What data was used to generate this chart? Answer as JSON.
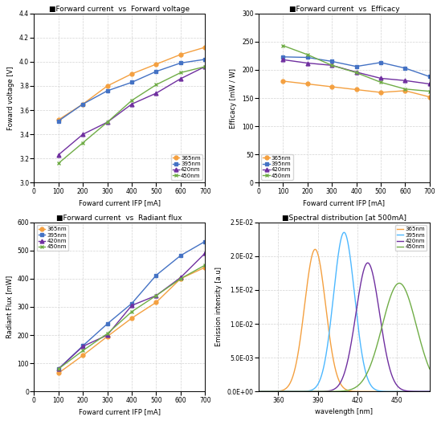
{
  "title1": "■Forward current  vs  Forward voltage",
  "title2": "■Forward current  vs  Efficacy",
  "title3": "■Forward current  vs  Radiant flux",
  "title4": "■Spectral distribution [at 500mA]",
  "xlabel_ifp": "Foward current IFP [mA]",
  "ylabel1": "Foward voltage [V]",
  "ylabel2": "Efficacy [mW / W]",
  "ylabel3": "Radiant Flux [mW]",
  "ylabel4": "Emission intensity [a.u]",
  "xlabel4": "wavelength [nm]",
  "ifp_x": [
    100,
    200,
    300,
    400,
    500,
    600,
    700
  ],
  "fv_365": [
    3.52,
    3.65,
    3.8,
    3.9,
    3.98,
    4.06,
    4.12
  ],
  "fv_395": [
    3.51,
    3.65,
    3.76,
    3.83,
    3.92,
    3.99,
    4.02
  ],
  "fv_420": [
    3.23,
    3.4,
    3.5,
    3.65,
    3.74,
    3.86,
    3.96
  ],
  "fv_450": [
    3.16,
    3.33,
    3.5,
    3.68,
    3.81,
    3.91,
    3.96
  ],
  "eff_365": [
    180,
    175,
    170,
    165,
    160,
    163,
    152
  ],
  "eff_395": [
    223,
    222,
    215,
    206,
    213,
    203,
    188
  ],
  "eff_420": [
    218,
    212,
    208,
    196,
    185,
    181,
    175
  ],
  "eff_450": [
    243,
    227,
    208,
    195,
    178,
    166,
    162
  ],
  "rf_365": [
    65,
    128,
    195,
    260,
    316,
    400,
    440
  ],
  "rf_395": [
    80,
    162,
    240,
    312,
    412,
    482,
    532
  ],
  "rf_420": [
    80,
    160,
    200,
    305,
    340,
    404,
    490
  ],
  "rf_450": [
    80,
    145,
    205,
    283,
    340,
    400,
    448
  ],
  "colors": {
    "365": "#f4a040",
    "395": "#4472c4",
    "420": "#7030a0",
    "450": "#70ad47"
  },
  "markers": {
    "365": "o",
    "395": "s",
    "420": "^",
    "450": "x"
  },
  "spectral_centers": {
    "365": 388,
    "395": 410,
    "420": 428,
    "450": 452
  },
  "spectral_widths": {
    "365": 8,
    "395": 8,
    "420": 9,
    "450": 13
  },
  "spectral_peaks": {
    "365": 0.021,
    "395": 0.0235,
    "420": 0.019,
    "450": 0.016
  },
  "spec_colors": {
    "365": "#f4a040",
    "395": "#4db8ff",
    "420": "#7030a0",
    "450": "#70ad47"
  },
  "ytick_labels": [
    "0.0E+00",
    "5.0E-03",
    "1.0E-02",
    "1.5E-02",
    "2.0E-02",
    "2.5E-02"
  ],
  "ytick_values": [
    0.0,
    0.005,
    0.01,
    0.015,
    0.02,
    0.025
  ]
}
